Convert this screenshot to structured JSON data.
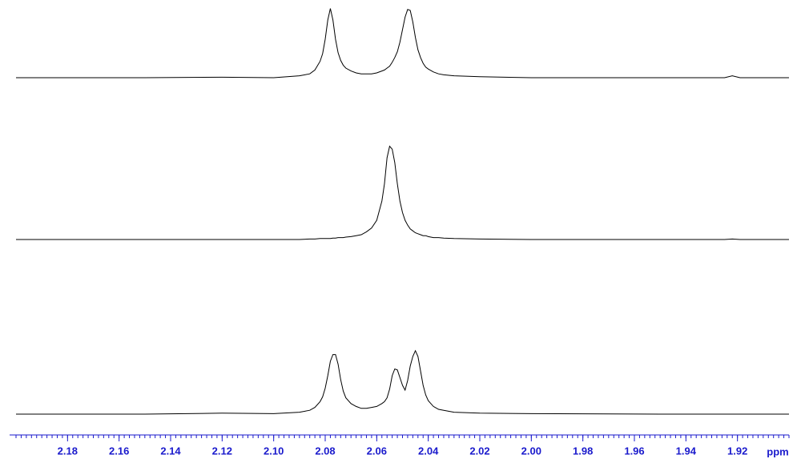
{
  "chart_data": {
    "type": "line",
    "xlabel": "ppm",
    "xlim": [
      2.2,
      1.9
    ],
    "xticks": [
      2.18,
      2.16,
      2.14,
      2.12,
      {
        "value": 2.1,
        "label": "2.10"
      },
      2.08,
      2.06,
      2.04,
      2.02,
      {
        "value": 2.0,
        "label": "2.00"
      },
      1.98,
      1.96,
      1.94,
      1.92
    ],
    "ylim": [
      0,
      100
    ],
    "axis_color": "#1a1acc",
    "x": [
      2.2,
      2.15,
      2.12,
      2.1,
      2.09,
      2.086,
      2.084,
      2.082,
      2.081,
      2.08,
      2.079,
      2.078,
      2.077,
      2.076,
      2.075,
      2.074,
      2.073,
      2.072,
      2.07,
      2.068,
      2.066,
      2.064,
      2.062,
      2.06,
      2.058,
      2.057,
      2.056,
      2.055,
      2.054,
      2.053,
      2.052,
      2.051,
      2.05,
      2.049,
      2.048,
      2.047,
      2.046,
      2.045,
      2.044,
      2.043,
      2.042,
      2.041,
      2.04,
      2.038,
      2.036,
      2.034,
      2.03,
      2.02,
      2.0,
      1.95,
      1.925,
      1.922,
      1.919,
      1.9
    ],
    "series": [
      {
        "color": "#000000",
        "values": [
          0,
          0,
          0.5,
          0,
          2,
          4,
          8,
          17,
          25,
          40,
          60,
          72,
          60,
          40,
          26,
          18,
          13,
          10,
          7,
          5,
          4,
          4,
          4,
          5,
          7,
          8,
          10,
          12,
          16,
          21,
          27,
          37,
          50,
          63,
          71,
          70,
          58,
          42,
          29,
          21,
          15,
          11,
          9,
          6,
          4,
          3,
          2,
          1,
          0,
          0,
          0,
          2,
          0,
          0
        ]
      },
      {
        "color": "#000000",
        "values": [
          0,
          0,
          0,
          0,
          0,
          0.5,
          0.5,
          1,
          1,
          1,
          1,
          1,
          1.5,
          1.5,
          2,
          2,
          2,
          2.5,
          3,
          4,
          5,
          8,
          12,
          20,
          40,
          58,
          85,
          97,
          94,
          80,
          58,
          40,
          28,
          20,
          15,
          11,
          9,
          7,
          6,
          5,
          4,
          4,
          3,
          2,
          2,
          1.5,
          1,
          0.5,
          0,
          0,
          0,
          0.5,
          0,
          0
        ]
      },
      {
        "color": "#000000",
        "values": [
          0,
          0,
          1,
          0.5,
          2,
          4,
          7,
          13,
          18,
          27,
          40,
          55,
          62,
          62,
          52,
          36,
          24,
          17,
          11,
          8,
          6,
          6,
          7,
          8,
          11,
          13,
          17,
          26,
          40,
          47,
          46,
          38,
          30,
          25,
          35,
          50,
          60,
          66,
          60,
          45,
          30,
          20,
          14,
          8,
          5,
          4,
          2,
          1,
          0.5,
          0,
          0,
          0,
          0,
          0
        ]
      }
    ]
  }
}
